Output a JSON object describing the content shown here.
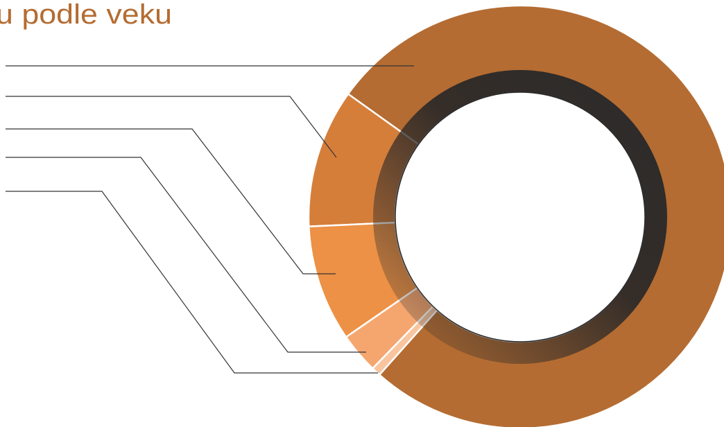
{
  "chart_data": {
    "type": "donut",
    "title": "u podle veku",
    "categories": [
      null,
      null,
      null,
      null,
      null
    ],
    "values": [
      76.7,
      10.6,
      8.9,
      3.1,
      0.7
    ],
    "colors": [
      "#b46c32",
      "#d57e3a",
      "#ec9145",
      "#f5a66f",
      "#f8c59f"
    ]
  }
}
